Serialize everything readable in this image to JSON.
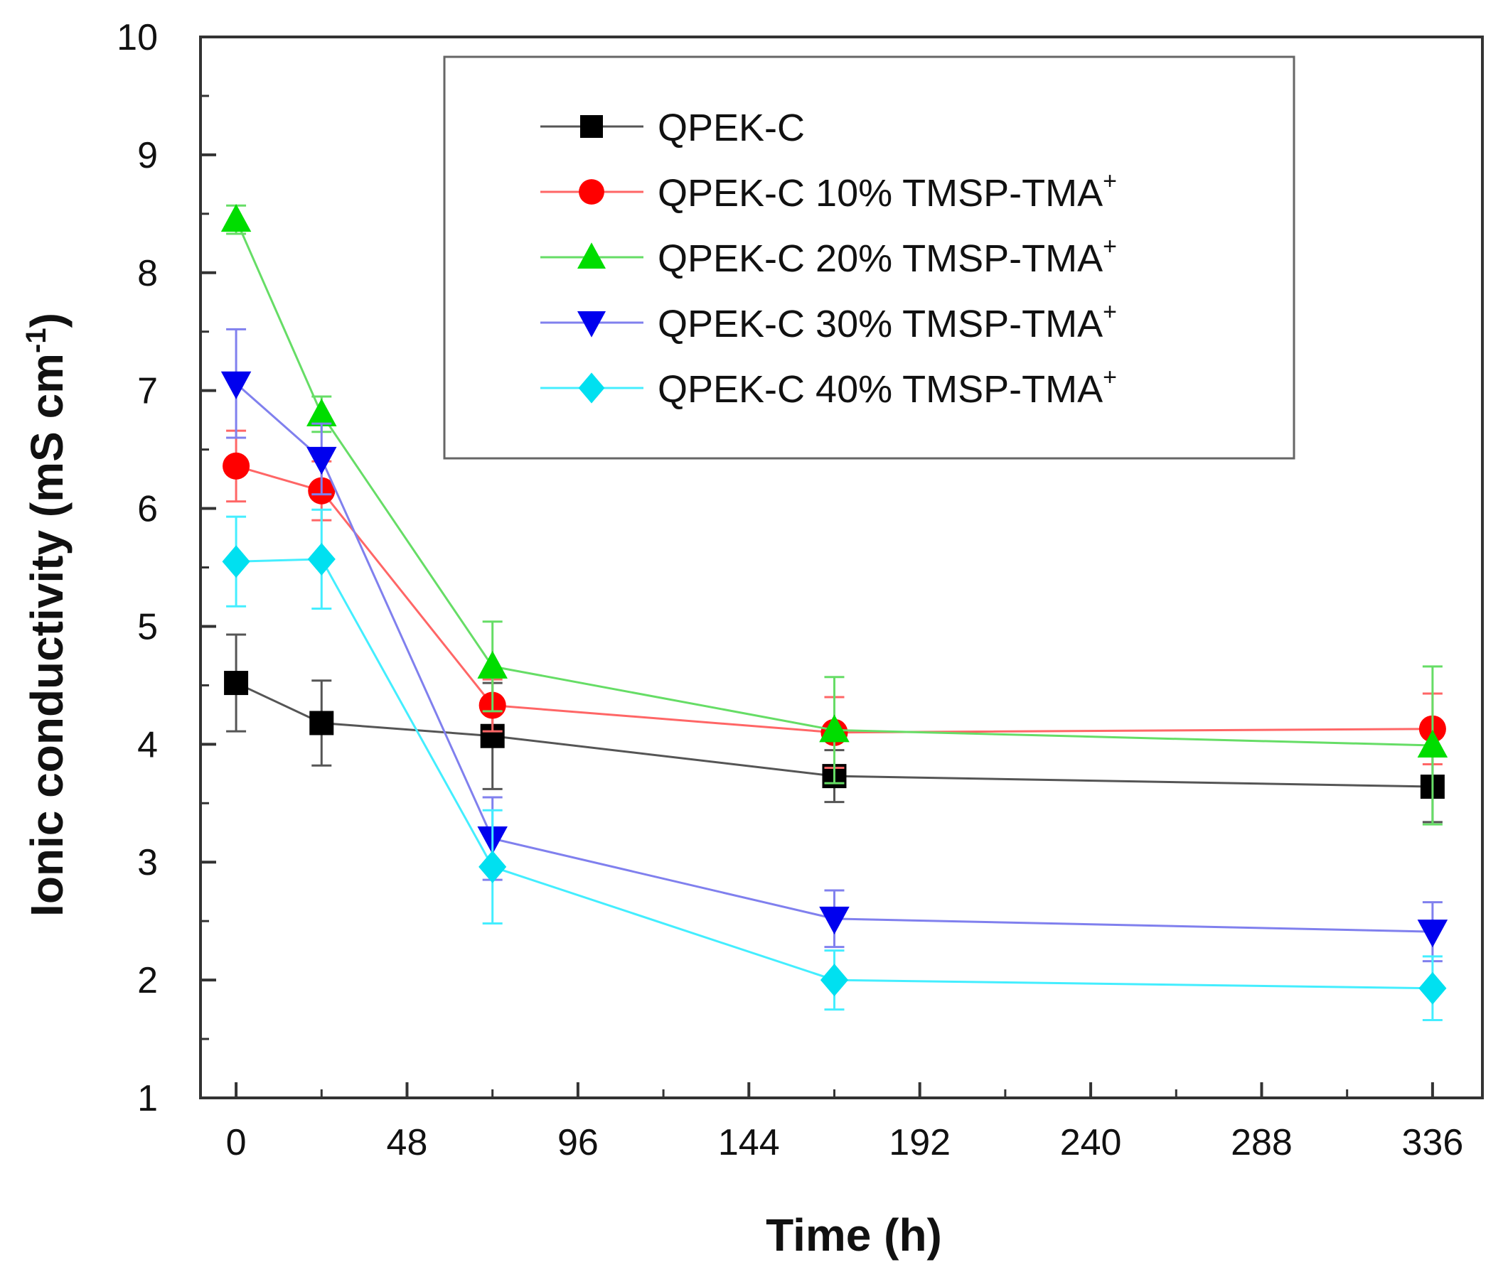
{
  "chart_data": {
    "type": "line",
    "xlabel": "Time (h)",
    "ylabel": {
      "main": "Ionic conductivity (mS cm",
      "sup": "-1",
      "close": ")"
    },
    "xlim": [
      -10,
      350
    ],
    "ylim": [
      1,
      10
    ],
    "xticks": [
      0,
      48,
      96,
      144,
      192,
      240,
      288,
      336
    ],
    "yticks": [
      1,
      2,
      3,
      4,
      5,
      6,
      7,
      8,
      9,
      10
    ],
    "x": [
      0,
      24,
      72,
      168,
      336
    ],
    "grid": false,
    "legend_position": "top-right",
    "series": [
      {
        "name": "QPEK-C",
        "name_sup": "",
        "color": "#000000",
        "line_color": "#555555",
        "marker": "square",
        "values": [
          4.52,
          4.18,
          4.07,
          3.73,
          3.64
        ],
        "errors": [
          0.41,
          0.36,
          0.45,
          0.22,
          0.3
        ]
      },
      {
        "name": "QPEK-C 10% TMSP-TMA",
        "name_sup": "+",
        "color": "#ff0000",
        "line_color": "#ff6666",
        "marker": "circle",
        "values": [
          6.36,
          6.15,
          4.33,
          4.1,
          4.13
        ],
        "errors": [
          0.3,
          0.25,
          0.22,
          0.3,
          0.3
        ]
      },
      {
        "name": "QPEK-C 20% TMSP-TMA",
        "name_sup": "+",
        "color": "#00dd00",
        "line_color": "#66dd66",
        "marker": "triangle-up",
        "values": [
          8.45,
          6.8,
          4.66,
          4.12,
          3.99
        ],
        "errors": [
          0.12,
          0.15,
          0.38,
          0.45,
          0.67
        ]
      },
      {
        "name": "QPEK-C 30% TMSP-TMA",
        "name_sup": "+",
        "color": "#0000ee",
        "line_color": "#8080ee",
        "marker": "triangle-down",
        "values": [
          7.06,
          6.42,
          3.2,
          2.52,
          2.41
        ],
        "errors": [
          0.46,
          0.3,
          0.35,
          0.24,
          0.25
        ]
      },
      {
        "name": "QPEK-C 40% TMSP-TMA",
        "name_sup": "+",
        "color": "#00e0f0",
        "line_color": "#44eeff",
        "marker": "diamond",
        "values": [
          5.55,
          5.57,
          2.96,
          2.0,
          1.93
        ],
        "errors": [
          0.38,
          0.42,
          0.48,
          0.25,
          0.27
        ]
      }
    ]
  }
}
